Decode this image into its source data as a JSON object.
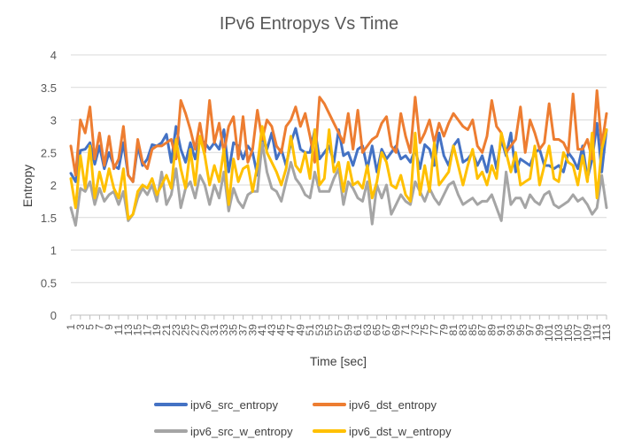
{
  "chart_data": {
    "type": "line",
    "title": "IPv6 Entropys Vs Time",
    "xlabel": "Time [sec]",
    "ylabel": "Entropy",
    "ylim": [
      0,
      4
    ],
    "yticks": [
      "0",
      "0.5",
      "1",
      "1.5",
      "2",
      "2.5",
      "3",
      "3.5",
      "4"
    ],
    "x": [
      1,
      2,
      3,
      4,
      5,
      6,
      7,
      8,
      9,
      10,
      11,
      12,
      13,
      14,
      15,
      16,
      17,
      18,
      19,
      20,
      21,
      22,
      23,
      24,
      25,
      26,
      27,
      28,
      29,
      30,
      31,
      32,
      33,
      34,
      35,
      36,
      37,
      38,
      39,
      40,
      41,
      42,
      43,
      44,
      45,
      46,
      47,
      48,
      49,
      50,
      51,
      52,
      53,
      54,
      55,
      56,
      57,
      58,
      59,
      60,
      61,
      62,
      63,
      64,
      65,
      66,
      67,
      68,
      69,
      70,
      71,
      72,
      73,
      74,
      75,
      76,
      77,
      78,
      79,
      80,
      81,
      82,
      83,
      84,
      85,
      86,
      87,
      88,
      89,
      90,
      91,
      92,
      93,
      94,
      95,
      96,
      97,
      98,
      99,
      100,
      101,
      102,
      103,
      104,
      105,
      106,
      107,
      108,
      109,
      110,
      111,
      112,
      113
    ],
    "xtick_labels": [
      "1",
      "3",
      "5",
      "7",
      "9",
      "11",
      "13",
      "15",
      "17",
      "19",
      "21",
      "23",
      "25",
      "27",
      "29",
      "31",
      "33",
      "35",
      "37",
      "39",
      "41",
      "43",
      "45",
      "47",
      "49",
      "51",
      "53",
      "55",
      "57",
      "59",
      "61",
      "63",
      "65",
      "67",
      "69",
      "71",
      "73",
      "75",
      "77",
      "79",
      "81",
      "83",
      "85",
      "87",
      "89",
      "91",
      "93",
      "95",
      "97",
      "99",
      "101",
      "103",
      "105",
      "107",
      "109",
      "111",
      "113"
    ],
    "grid": "horizontal",
    "legend_position": "bottom",
    "series": [
      {
        "name": "ipv6_src_entropy",
        "color": "#4472C4",
        "values": [
          2.18,
          2.05,
          2.53,
          2.55,
          2.65,
          2.32,
          2.6,
          2.25,
          2.5,
          2.3,
          2.25,
          2.65,
          2.15,
          2.05,
          2.6,
          2.3,
          2.4,
          2.62,
          2.6,
          2.65,
          2.78,
          2.35,
          2.9,
          2.55,
          2.35,
          2.65,
          2.4,
          2.7,
          2.65,
          2.55,
          2.65,
          2.55,
          2.85,
          2.2,
          2.65,
          2.6,
          2.4,
          2.6,
          2.5,
          2.15,
          2.7,
          2.55,
          2.8,
          2.4,
          2.55,
          2.3,
          2.65,
          2.87,
          2.55,
          2.5,
          2.5,
          2.85,
          2.4,
          2.5,
          2.6,
          2.35,
          2.85,
          2.45,
          2.5,
          2.3,
          2.55,
          2.6,
          2.25,
          2.6,
          2.2,
          2.55,
          2.4,
          2.5,
          2.6,
          2.4,
          2.45,
          2.35,
          2.55,
          2.25,
          2.62,
          2.55,
          2.3,
          2.8,
          2.45,
          2.3,
          2.6,
          2.7,
          2.35,
          2.4,
          2.5,
          2.3,
          2.45,
          2.2,
          2.6,
          2.25,
          2.7,
          2.45,
          2.8,
          2.2,
          2.4,
          2.35,
          2.3,
          2.5,
          2.55,
          2.3,
          2.3,
          2.25,
          2.3,
          2.2,
          2.5,
          2.4,
          2.25,
          2.6,
          2.1,
          2.4,
          2.95,
          2.2,
          2.85
        ]
      },
      {
        "name": "ipv6_dst_entropy",
        "color": "#ED7D31",
        "values": [
          2.6,
          2.15,
          3.0,
          2.8,
          3.2,
          2.4,
          2.8,
          2.3,
          2.75,
          2.25,
          2.4,
          2.9,
          2.15,
          2.05,
          2.7,
          2.35,
          2.25,
          2.55,
          2.6,
          2.6,
          2.65,
          2.7,
          2.4,
          3.3,
          3.1,
          2.85,
          2.55,
          2.95,
          2.5,
          3.3,
          2.65,
          2.95,
          2.5,
          2.9,
          3.05,
          2.4,
          3.05,
          2.35,
          2.55,
          3.15,
          2.7,
          3.0,
          2.9,
          2.6,
          2.5,
          2.9,
          3.0,
          3.2,
          2.9,
          3.1,
          2.75,
          2.35,
          3.35,
          3.25,
          3.1,
          2.95,
          2.8,
          2.65,
          3.1,
          2.55,
          3.15,
          2.5,
          2.6,
          2.7,
          2.75,
          2.95,
          3.05,
          2.6,
          2.5,
          3.1,
          2.75,
          2.5,
          3.35,
          2.65,
          2.8,
          3.0,
          2.65,
          2.95,
          2.75,
          2.95,
          3.1,
          3.0,
          2.9,
          2.85,
          3.0,
          2.6,
          2.5,
          2.75,
          3.3,
          2.9,
          2.8,
          2.5,
          2.6,
          2.7,
          3.2,
          2.5,
          3.0,
          2.8,
          2.55,
          2.65,
          3.25,
          2.7,
          2.7,
          2.65,
          2.5,
          3.4,
          2.55,
          2.55,
          2.7,
          2.4,
          3.45,
          2.6,
          3.1
        ]
      },
      {
        "name": "ipv6_src_w_entropy",
        "color": "#A5A5A5",
        "values": [
          1.65,
          1.38,
          1.95,
          1.9,
          2.05,
          1.7,
          1.95,
          1.75,
          1.85,
          1.9,
          1.7,
          1.9,
          1.45,
          1.55,
          1.8,
          1.95,
          1.85,
          2.0,
          1.75,
          2.2,
          1.7,
          1.85,
          2.25,
          1.65,
          1.95,
          2.05,
          1.8,
          2.15,
          2.0,
          1.7,
          2.0,
          1.8,
          2.2,
          1.6,
          1.95,
          1.75,
          1.65,
          1.85,
          1.9,
          1.9,
          2.65,
          2.2,
          1.95,
          1.9,
          1.75,
          2.05,
          2.35,
          2.1,
          2.0,
          1.85,
          1.8,
          2.2,
          1.9,
          1.9,
          1.9,
          2.1,
          2.25,
          1.7,
          2.05,
          1.95,
          1.8,
          1.75,
          2.05,
          1.4,
          2.0,
          1.8,
          2.0,
          1.55,
          1.7,
          1.85,
          1.75,
          1.7,
          2.05,
          1.9,
          1.75,
          1.95,
          1.8,
          1.7,
          1.85,
          2.0,
          2.05,
          1.85,
          1.7,
          1.75,
          1.8,
          1.7,
          1.75,
          1.75,
          1.85,
          1.65,
          1.45,
          2.2,
          1.7,
          1.8,
          1.8,
          1.65,
          1.85,
          1.75,
          1.7,
          1.85,
          1.9,
          1.7,
          1.65,
          1.7,
          1.75,
          1.85,
          1.75,
          1.8,
          1.7,
          1.55,
          1.65,
          2.15,
          1.65
        ]
      },
      {
        "name": "ipv6_dst_w_entropy",
        "color": "#FFC000",
        "values": [
          2.1,
          1.65,
          2.45,
          1.95,
          2.6,
          1.8,
          2.2,
          1.9,
          2.25,
          1.95,
          1.8,
          2.25,
          1.48,
          1.55,
          1.9,
          2.0,
          1.95,
          2.1,
          1.85,
          2.0,
          2.15,
          1.95,
          2.7,
          2.25,
          1.95,
          2.55,
          2.0,
          2.75,
          2.45,
          2.0,
          2.3,
          2.05,
          2.55,
          1.7,
          2.4,
          2.05,
          2.25,
          2.3,
          1.9,
          2.3,
          2.9,
          2.5,
          2.35,
          2.2,
          2.0,
          2.25,
          2.75,
          2.3,
          2.2,
          2.5,
          2.1,
          2.85,
          2.0,
          2.1,
          2.85,
          2.2,
          2.35,
          1.9,
          2.35,
          2.0,
          2.05,
          1.95,
          2.3,
          1.8,
          2.05,
          2.5,
          2.35,
          2.0,
          1.95,
          2.15,
          1.85,
          1.75,
          2.8,
          1.85,
          2.3,
          1.9,
          2.65,
          2.0,
          2.1,
          2.2,
          2.6,
          2.3,
          2.0,
          2.3,
          2.55,
          2.1,
          2.2,
          2.0,
          2.3,
          2.1,
          2.8,
          2.5,
          2.2,
          2.5,
          2.0,
          2.05,
          2.1,
          2.6,
          2.0,
          2.3,
          2.6,
          2.1,
          2.05,
          2.5,
          2.35,
          2.3,
          2.0,
          2.45,
          2.05,
          2.8,
          1.8,
          2.55,
          2.85
        ]
      }
    ]
  }
}
